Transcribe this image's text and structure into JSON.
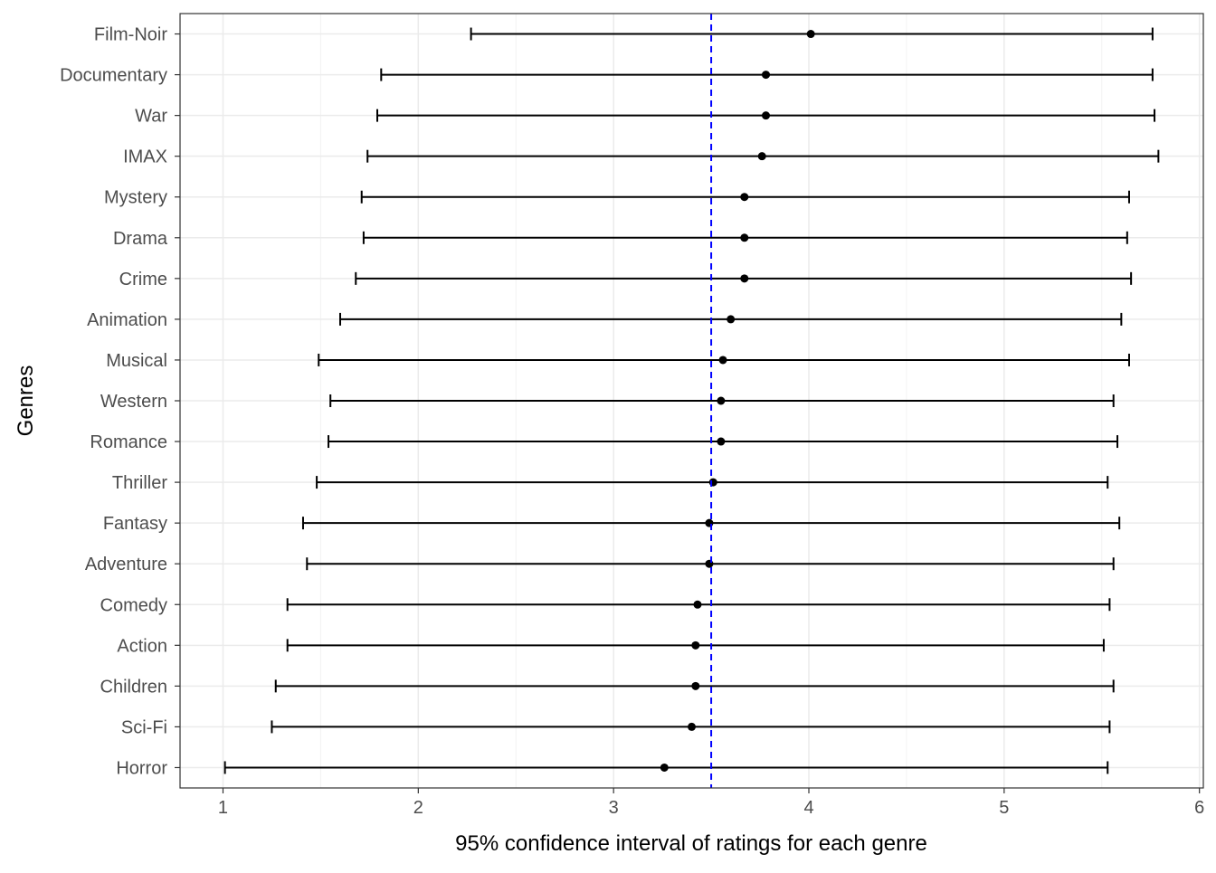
{
  "chart_data": {
    "type": "errorbar",
    "title": "",
    "xlabel": "95% confidence interval of ratings for each genre",
    "ylabel": "Genres",
    "xlim": [
      0.78,
      6.02
    ],
    "xticks": [
      1,
      2,
      3,
      4,
      5,
      6
    ],
    "grid": true,
    "reference_line": {
      "x": 3.5,
      "color": "#0000ff",
      "style": "dashed"
    },
    "point_color": "#000000",
    "categories": [
      "Film-Noir",
      "Documentary",
      "War",
      "IMAX",
      "Mystery",
      "Drama",
      "Crime",
      "Animation",
      "Musical",
      "Western",
      "Romance",
      "Thriller",
      "Fantasy",
      "Adventure",
      "Comedy",
      "Action",
      "Children",
      "Sci-Fi",
      "Horror"
    ],
    "series": [
      {
        "mean": [
          4.01,
          3.78,
          3.78,
          3.76,
          3.67,
          3.67,
          3.67,
          3.6,
          3.56,
          3.55,
          3.55,
          3.51,
          3.49,
          3.49,
          3.43,
          3.42,
          3.42,
          3.4,
          3.26
        ],
        "lower": [
          2.27,
          1.81,
          1.79,
          1.74,
          1.71,
          1.72,
          1.68,
          1.6,
          1.49,
          1.55,
          1.54,
          1.48,
          1.41,
          1.43,
          1.33,
          1.33,
          1.27,
          1.25,
          1.01
        ],
        "upper": [
          5.76,
          5.76,
          5.77,
          5.79,
          5.64,
          5.63,
          5.65,
          5.6,
          5.64,
          5.56,
          5.58,
          5.53,
          5.59,
          5.56,
          5.54,
          5.51,
          5.56,
          5.54,
          5.53
        ]
      }
    ]
  }
}
